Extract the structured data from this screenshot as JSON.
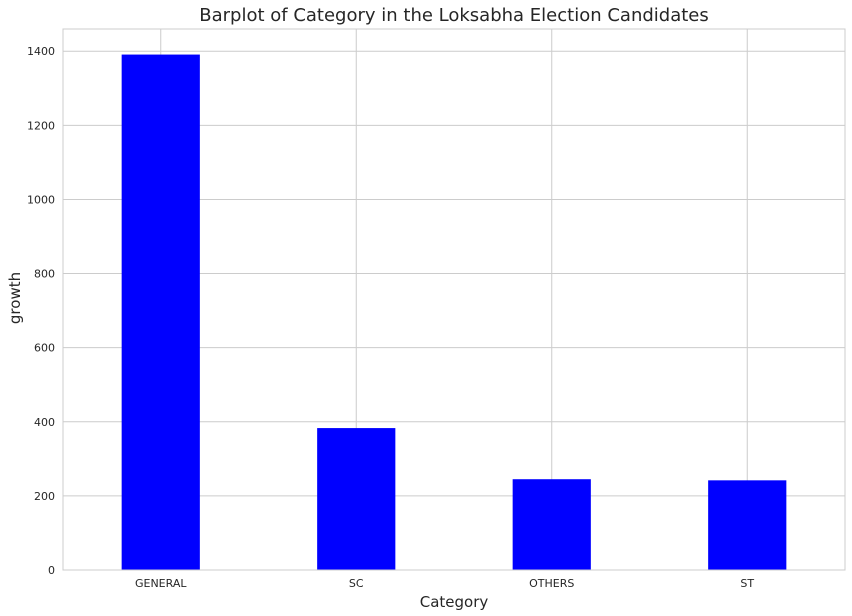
{
  "chart_data": {
    "type": "bar",
    "title": "Barplot of Category in the Loksabha Election Candidates",
    "xlabel": "Category",
    "ylabel": "growth",
    "categories": [
      "GENERAL",
      "SC",
      "OTHERS",
      "ST"
    ],
    "values": [
      1391,
      383,
      245,
      242
    ],
    "ylim": [
      0,
      1460
    ],
    "yticks": [
      0,
      200,
      400,
      600,
      800,
      1000,
      1200,
      1400
    ],
    "grid": true,
    "bar_color": "#0000ff",
    "legend": "none"
  }
}
